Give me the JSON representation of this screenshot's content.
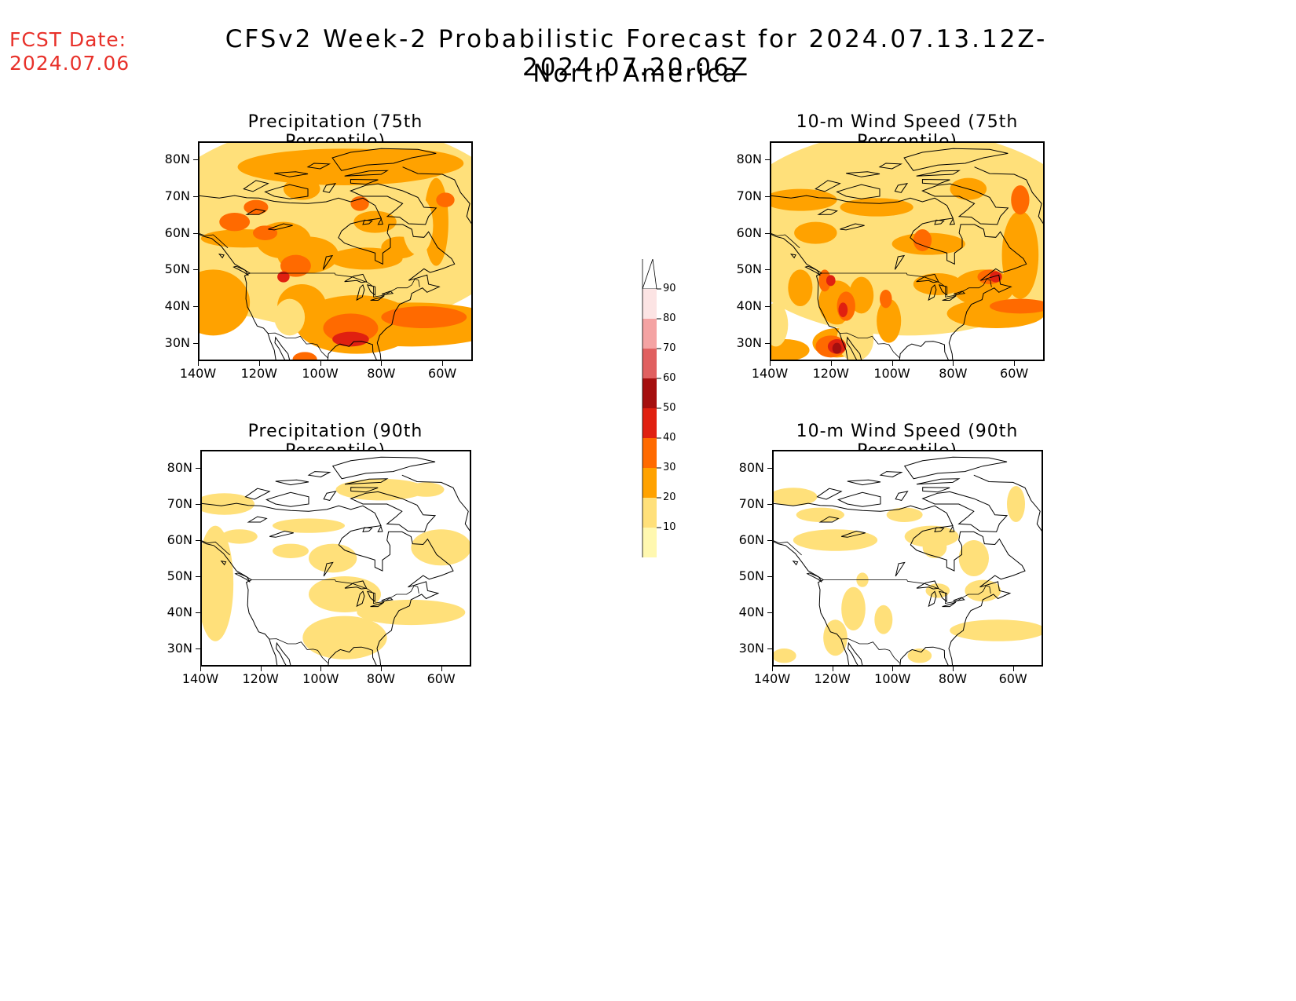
{
  "header": {
    "fcst_label": "FCST Date:",
    "fcst_date": "2024.07.06",
    "title": "CFSv2 Week-2 Probabilistic Forecast for 2024.07.13.12Z-2024.07.20.06Z",
    "subtitle": "North America"
  },
  "panels": [
    {
      "title": "Precipitation (75th Percentile)",
      "intensity": "high",
      "field": "precip"
    },
    {
      "title": "10-m Wind Speed (75th Percentile)",
      "intensity": "high",
      "field": "wind"
    },
    {
      "title": "Precipitation (90th Percentile)",
      "intensity": "low",
      "field": "precip"
    },
    {
      "title": "10-m Wind Speed (90th Percentile)",
      "intensity": "low",
      "field": "wind"
    }
  ],
  "axes": {
    "lat_labels": [
      "80N",
      "70N",
      "60N",
      "50N",
      "40N",
      "30N"
    ],
    "lon_labels": [
      "140W",
      "120W",
      "100W",
      "80W",
      "60W"
    ]
  },
  "colorbar": {
    "levels": [
      "90",
      "80",
      "70",
      "60",
      "50",
      "40",
      "30",
      "20",
      "10"
    ],
    "colors": [
      "#fce4e4",
      "#f4a3a3",
      "#e06060",
      "#a50f0f",
      "#e02010",
      "#ff6a00",
      "#ffa200",
      "#ffe07a",
      "#fff8b0"
    ]
  }
}
